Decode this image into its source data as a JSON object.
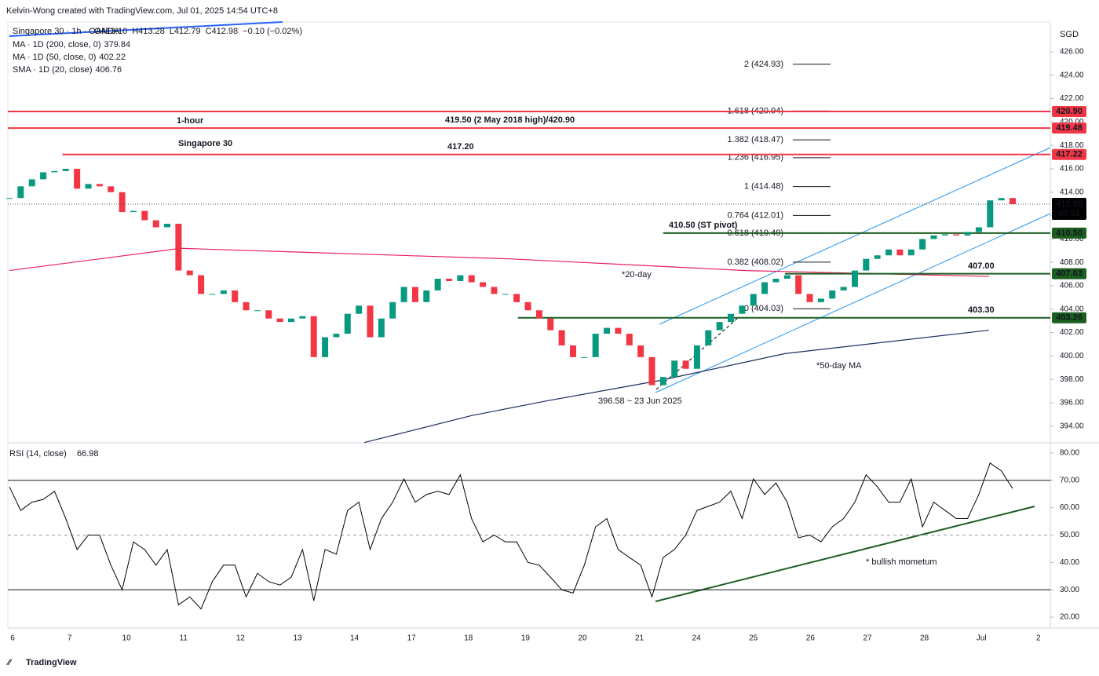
{
  "header": "Kelvin-Wong created with TradingView.com, Jul 01, 2025 14:54 UTC+8",
  "footer": "TradingView",
  "chart_data": {
    "type": "candlestick",
    "instrument": {
      "name": "Singapore 30 · 1h · OANDA",
      "fields": [
        "O413.10",
        "H413.28",
        "L412.79",
        "C412.98",
        "−0.10 (−0.02%)"
      ]
    },
    "indicators": [
      {
        "name": "MA · 1D (200, close, 0)",
        "value": 379.84,
        "color": "#f5a623"
      },
      {
        "name": "MA · 1D (50, close, 0)",
        "value": 402.22,
        "color": "#1a2f5e",
        "x": [
          31.5,
          41,
          47.9,
          57.7,
          68.8,
          86.9
        ],
        "values": [
          392.6,
          394.9,
          396.2,
          397.9,
          400.2,
          402.2
        ]
      },
      {
        "name": "SMA · 1D (20, close)",
        "value": 406.76,
        "color": "#e91e63",
        "x": [
          0,
          15.2,
          44.4,
          65.3,
          86.9
        ],
        "values": [
          407.3,
          409.2,
          408.3,
          407.3,
          406.8
        ]
      }
    ],
    "currency": "SGD",
    "categories": [
      "6",
      "7",
      "10",
      "11",
      "12",
      "13",
      "14",
      "17",
      "18",
      "19",
      "20",
      "21",
      "24",
      "25",
      "26",
      "27",
      "28",
      "Jul",
      "2"
    ],
    "closes": [
      413.5,
      414.5,
      415.1,
      415.7,
      415.8,
      416.0,
      414.3,
      414.7,
      414.5,
      414.0,
      412.3,
      412.4,
      411.6,
      411.0,
      411.3,
      407.3,
      406.9,
      405.3,
      405.3,
      405.6,
      404.6,
      403.9,
      403.9,
      403.2,
      402.9,
      403.2,
      403.4,
      399.9,
      401.6,
      401.9,
      403.6,
      404.3,
      401.6,
      403.2,
      404.6,
      405.9,
      404.6,
      405.6,
      406.6,
      406.4,
      406.9,
      406.3,
      405.9,
      405.3,
      405.3,
      404.6,
      403.9,
      403.2,
      402.2,
      400.9,
      399.9,
      399.9,
      401.9,
      402.4,
      401.9,
      400.9,
      399.9,
      397.5,
      398.2,
      399.6,
      398.9,
      400.9,
      402.2,
      402.9,
      403.6,
      404.3,
      405.3,
      406.3,
      406.6,
      406.9,
      405.3,
      404.6,
      404.9,
      405.6,
      405.9,
      407.3,
      408.3,
      408.6,
      409.1,
      408.6,
      409.1,
      410.0,
      410.3,
      410.4,
      410.3,
      410.6,
      411.0,
      413.3,
      413.5,
      412.98
    ],
    "up_color": "#089981",
    "down_color": "#f23645",
    "ylim": [
      392.64,
      428.55
    ],
    "yticks": [
      {
        "value": 394,
        "label": "394.00"
      },
      {
        "value": 396,
        "label": "396.00"
      },
      {
        "value": 398,
        "label": "398.00"
      },
      {
        "value": 400,
        "label": "400.00"
      },
      {
        "value": 402,
        "label": "402.00"
      },
      {
        "value": 404,
        "label": "404.00"
      },
      {
        "value": 406,
        "label": "406.00"
      },
      {
        "value": 408,
        "label": "408.00"
      },
      {
        "value": 410,
        "label": "410.00"
      },
      {
        "value": 412,
        "label": "412.00"
      },
      {
        "value": 414,
        "label": "414.00"
      },
      {
        "value": 416,
        "label": "416.00"
      },
      {
        "value": 418,
        "label": "418.00"
      },
      {
        "value": 420,
        "label": "420.00"
      },
      {
        "value": 422,
        "label": "422.00"
      },
      {
        "value": 424,
        "label": "424.00"
      },
      {
        "value": 426,
        "label": "426.00"
      }
    ],
    "levels": [
      {
        "value": 420.9,
        "label": "420.90",
        "color": "#f23645",
        "start": 0
      },
      {
        "value": 419.48,
        "label": "419.48",
        "color": "#f23645",
        "start": 0
      },
      {
        "value": 417.22,
        "label": "417.22",
        "color": "#f23645",
        "start": 4.7
      },
      {
        "value": 410.5,
        "label": "410.50",
        "color": "#1b5e20",
        "start": 58
      },
      {
        "value": 407.03,
        "label": "407.03",
        "color": "#1b5e20",
        "start": 68.8
      },
      {
        "value": 403.26,
        "label": "403.26",
        "color": "#1b5e20",
        "start": 45.1
      }
    ],
    "last": {
      "value": 412.98,
      "label": "412.98",
      "countdown": "05:51"
    },
    "fib": [
      {
        "label": "2 (424.93)",
        "value": 424.93
      },
      {
        "label": "1.618 (420.94)",
        "value": 420.94
      },
      {
        "label": "1.382 (418.47)",
        "value": 418.47
      },
      {
        "label": "1.236 (416.95)",
        "value": 416.95
      },
      {
        "label": "1 (414.48)",
        "value": 414.48
      },
      {
        "label": "0.764 (412.01)",
        "value": 412.01
      },
      {
        "label": "0.618 (410.49)",
        "value": 410.49
      },
      {
        "label": "0.382 (408.02)",
        "value": 408.02
      },
      {
        "label": "0 (404.03)",
        "value": 404.03
      }
    ],
    "annotations": [
      {
        "text": "1-hour",
        "color": "#000000"
      },
      {
        "text": "Singapore 30",
        "color": "#2f5fdc"
      },
      {
        "text": "419.50 (2 May 2018 high)/420.90",
        "color": "#f23645"
      },
      {
        "text": "417.20",
        "color": "#f23645"
      },
      {
        "text": "410.50 (ST pivot)",
        "color": "#1b5e20"
      },
      {
        "text": "407.00",
        "color": "#1b5e20"
      },
      {
        "text": "403.30",
        "color": "#1b5e20"
      },
      {
        "text": "*20-day",
        "color": "#e91e63"
      },
      {
        "text": "*50-day MA",
        "color": "#1a2f5e"
      },
      {
        "text": "396.58 ~ 23 Jun 2025",
        "color": "#000000"
      },
      {
        "text": "* bullish mometum",
        "color": "#1b5e20"
      }
    ],
    "rsi": {
      "title": "RSI (14, close)",
      "value": 66.98,
      "color": "#000000",
      "values": [
        67.6,
        59,
        62,
        63,
        66,
        56,
        44.7,
        50,
        50,
        39,
        30,
        47.5,
        44.7,
        39,
        44.7,
        24.5,
        27.4,
        23,
        33,
        39,
        39,
        27.4,
        36,
        33,
        31.7,
        34.6,
        44.7,
        26,
        44.7,
        43,
        59,
        62,
        44.7,
        56,
        62,
        70.5,
        62,
        64.8,
        66,
        64.8,
        72,
        56,
        47.5,
        50,
        47.5,
        47.5,
        40,
        39,
        34.6,
        30,
        28.8,
        39,
        53,
        56,
        44.7,
        41.8,
        39,
        27.4,
        41.8,
        44.7,
        50,
        59,
        60.5,
        62,
        66,
        56,
        70.5,
        64.8,
        69,
        62,
        49,
        50,
        47.5,
        53,
        56,
        62,
        72,
        67.6,
        62,
        62,
        70.5,
        53,
        62,
        59,
        56,
        56,
        64.8,
        76.3,
        73.4,
        66.98
      ],
      "ylim": [
        16,
        83.4
      ],
      "yticks": [
        {
          "value": 20,
          "label": "20.00"
        },
        {
          "value": 30,
          "label": "30.00"
        },
        {
          "value": 40,
          "label": "40.00"
        },
        {
          "value": 50,
          "label": "50.00"
        },
        {
          "value": 60,
          "label": "60.00"
        },
        {
          "value": 70,
          "label": "70.00"
        },
        {
          "value": 80,
          "label": "80.00"
        }
      ],
      "bands": [
        30,
        70
      ],
      "midline": 50
    }
  }
}
